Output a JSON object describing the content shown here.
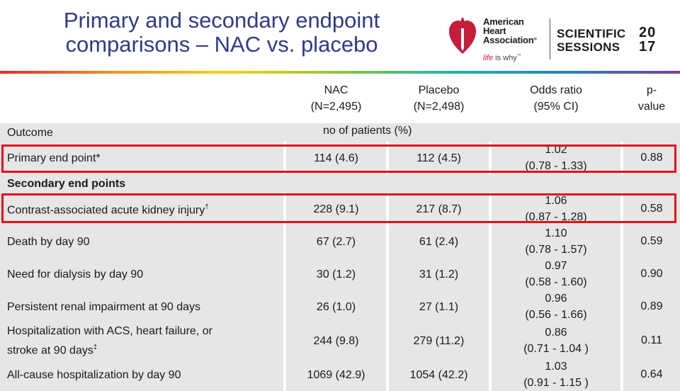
{
  "slide": {
    "title_line1": "Primary and secondary endpoint",
    "title_line2": "comparisons – NAC vs. placebo"
  },
  "logo": {
    "aha_line1": "American",
    "aha_line2": "Heart",
    "aha_line3": "Association",
    "tagline_a": "life",
    "tagline_b": "is why",
    "ss_line1": "SCIENTIFIC",
    "ss_line2": "SESSIONS",
    "year_a": "20",
    "year_b": "17"
  },
  "table": {
    "headers": {
      "nac_l1": "NAC",
      "nac_l2": "(N=2,495)",
      "placebo_l1": "Placebo",
      "placebo_l2": "(N=2,498)",
      "or_l1": "Odds ratio",
      "or_l2": "(95% CI)",
      "p_l1": "p-",
      "p_l2": "value"
    },
    "outcome_label": "Outcome",
    "units_label": "no of patients (%)",
    "secondary_label": "Secondary end points",
    "rows": [
      {
        "outcome": "Primary end point*",
        "sup": "",
        "nac": "114 (4.6)",
        "placebo": "112 (4.5)",
        "or_l1": "1.02",
        "or_l2": "(0.78 - 1.33)",
        "p": "0.88"
      },
      {
        "outcome": "Contrast-associated acute kidney injury",
        "sup": "†",
        "nac": "228 (9.1)",
        "placebo": "217 (8.7)",
        "or_l1": "1.06",
        "or_l2": "(0.87 - 1.28)",
        "p": "0.58"
      },
      {
        "outcome": "Death by day 90",
        "sup": "",
        "nac": "67 (2.7)",
        "placebo": "61 (2.4)",
        "or_l1": "1.10",
        "or_l2": "(0.78 - 1.57)",
        "p": "0.59"
      },
      {
        "outcome": "Need for dialysis by day 90",
        "sup": "",
        "nac": "30 (1.2)",
        "placebo": "31 (1.2)",
        "or_l1": "0.97",
        "or_l2": "(0.58 - 1.60)",
        "p": "0.90"
      },
      {
        "outcome": "Persistent renal impairment at 90 days",
        "sup": "",
        "nac": "26 (1.0)",
        "placebo": "27 (1.1)",
        "or_l1": "0.96",
        "or_l2": "(0.56 - 1.66)",
        "p": "0.89"
      },
      {
        "outcome": "Hospitalization with ACS, heart failure, or",
        "outcome_l2": "stroke at 90 days",
        "sup": "‡",
        "nac": "244 (9.8)",
        "placebo": "279 (11.2)",
        "or_l1": "0.86",
        "or_l2": "(0.71 - 1.04 )",
        "p": "0.11"
      },
      {
        "outcome": "All-cause hospitalization by day 90",
        "sup": "",
        "nac": "1069 (42.9)",
        "placebo": "1054 (42.2)",
        "or_l1": "1.03",
        "or_l2": "(0.91 - 1.15 )",
        "p": "0.64"
      }
    ]
  },
  "colors": {
    "title": "#2f3b86",
    "highlight": "#e3101a",
    "cell_shade": "#e6e6e6"
  }
}
